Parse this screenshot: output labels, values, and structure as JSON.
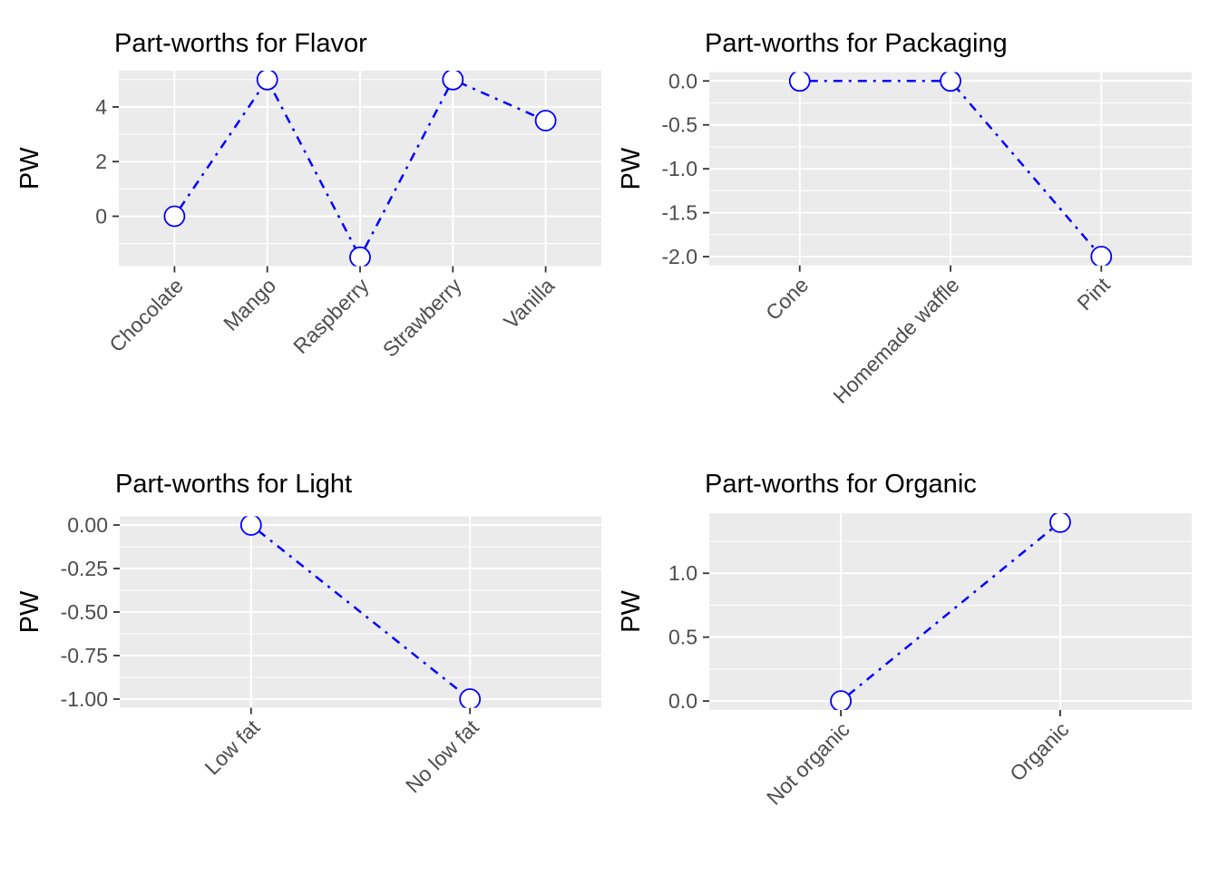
{
  "page": {
    "background": "#FFFFFF"
  },
  "style": {
    "panel_bg": "#EBEBEB",
    "grid_color": "#FFFFFF",
    "tick_label_color": "#4D4D4D",
    "tick_mark_color": "#333333",
    "title_color": "#000000",
    "axis_title_color": "#000000",
    "line_color": "#0000FF",
    "marker_fill": "#FFFFFF"
  },
  "chart_data": [
    {
      "type": "line",
      "title": "Part-worths for Flavor",
      "ylabel": "PW",
      "xlabel": "",
      "categories": [
        "Chocolate",
        "Mango",
        "Raspberry",
        "Strawberry",
        "Vanilla"
      ],
      "values": [
        0,
        5,
        -1.5,
        5,
        3.5
      ],
      "y_tick_labels": [
        "0",
        "2",
        "4"
      ],
      "y_tick_values": [
        0,
        2,
        4
      ],
      "y_minor_values": [
        -1,
        1,
        3,
        5
      ],
      "ylim": [
        -1.825,
        5.325
      ],
      "x_tick_angle": 45,
      "grid": true,
      "legend": "none",
      "line_style": "dotdash",
      "marker": "open-circle"
    },
    {
      "type": "line",
      "title": "Part-worths for Packaging",
      "ylabel": "PW",
      "xlabel": "",
      "categories": [
        "Cone",
        "Homemade waffle",
        "Pint"
      ],
      "values": [
        0,
        0,
        -2
      ],
      "y_tick_labels": [
        "0.0",
        "-0.5",
        "-1.0",
        "-1.5",
        "-2.0"
      ],
      "y_tick_values": [
        0,
        -0.5,
        -1,
        -1.5,
        -2
      ],
      "y_minor_values": [
        -0.25,
        -0.75,
        -1.25,
        -1.75
      ],
      "ylim": [
        -2.1,
        0.1
      ],
      "x_tick_angle": 45,
      "grid": true,
      "legend": "none",
      "line_style": "dotdash",
      "marker": "open-circle"
    },
    {
      "type": "line",
      "title": "Part-worths for Light",
      "ylabel": "PW",
      "xlabel": "",
      "categories": [
        "Low fat",
        "No low fat"
      ],
      "values": [
        0,
        -1
      ],
      "y_tick_labels": [
        "0.00",
        "-0.25",
        "-0.50",
        "-0.75",
        "-1.00"
      ],
      "y_tick_values": [
        0,
        -0.25,
        -0.5,
        -0.75,
        -1
      ],
      "y_minor_values": [
        -0.125,
        -0.375,
        -0.625,
        -0.875
      ],
      "ylim": [
        -1.05,
        0.05
      ],
      "x_tick_angle": 45,
      "grid": true,
      "legend": "none",
      "line_style": "dotdash",
      "marker": "open-circle"
    },
    {
      "type": "line",
      "title": "Part-worths for Organic",
      "ylabel": "PW",
      "xlabel": "",
      "categories": [
        "Not organic",
        "Organic"
      ],
      "values": [
        0,
        1.4
      ],
      "y_tick_labels": [
        "0.0",
        "0.5",
        "1.0"
      ],
      "y_tick_values": [
        0,
        0.5,
        1
      ],
      "y_minor_values": [
        0.25,
        0.75,
        1.25
      ],
      "ylim": [
        -0.07,
        1.47
      ],
      "x_tick_angle": 45,
      "grid": true,
      "legend": "none",
      "line_style": "dotdash",
      "marker": "open-circle"
    }
  ]
}
